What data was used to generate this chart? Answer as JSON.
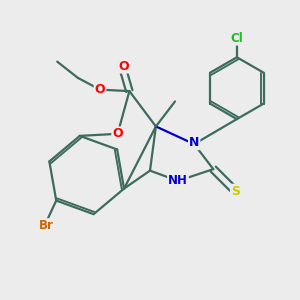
{
  "bg_color": "#ececec",
  "bond_color": "#3d6b5e",
  "atom_colors": {
    "O": "#ff0000",
    "N": "#0000cc",
    "S": "#cccc00",
    "Br": "#cc6600",
    "Cl": "#22bb22",
    "C": "#3d6b5e"
  },
  "lw": 1.6
}
